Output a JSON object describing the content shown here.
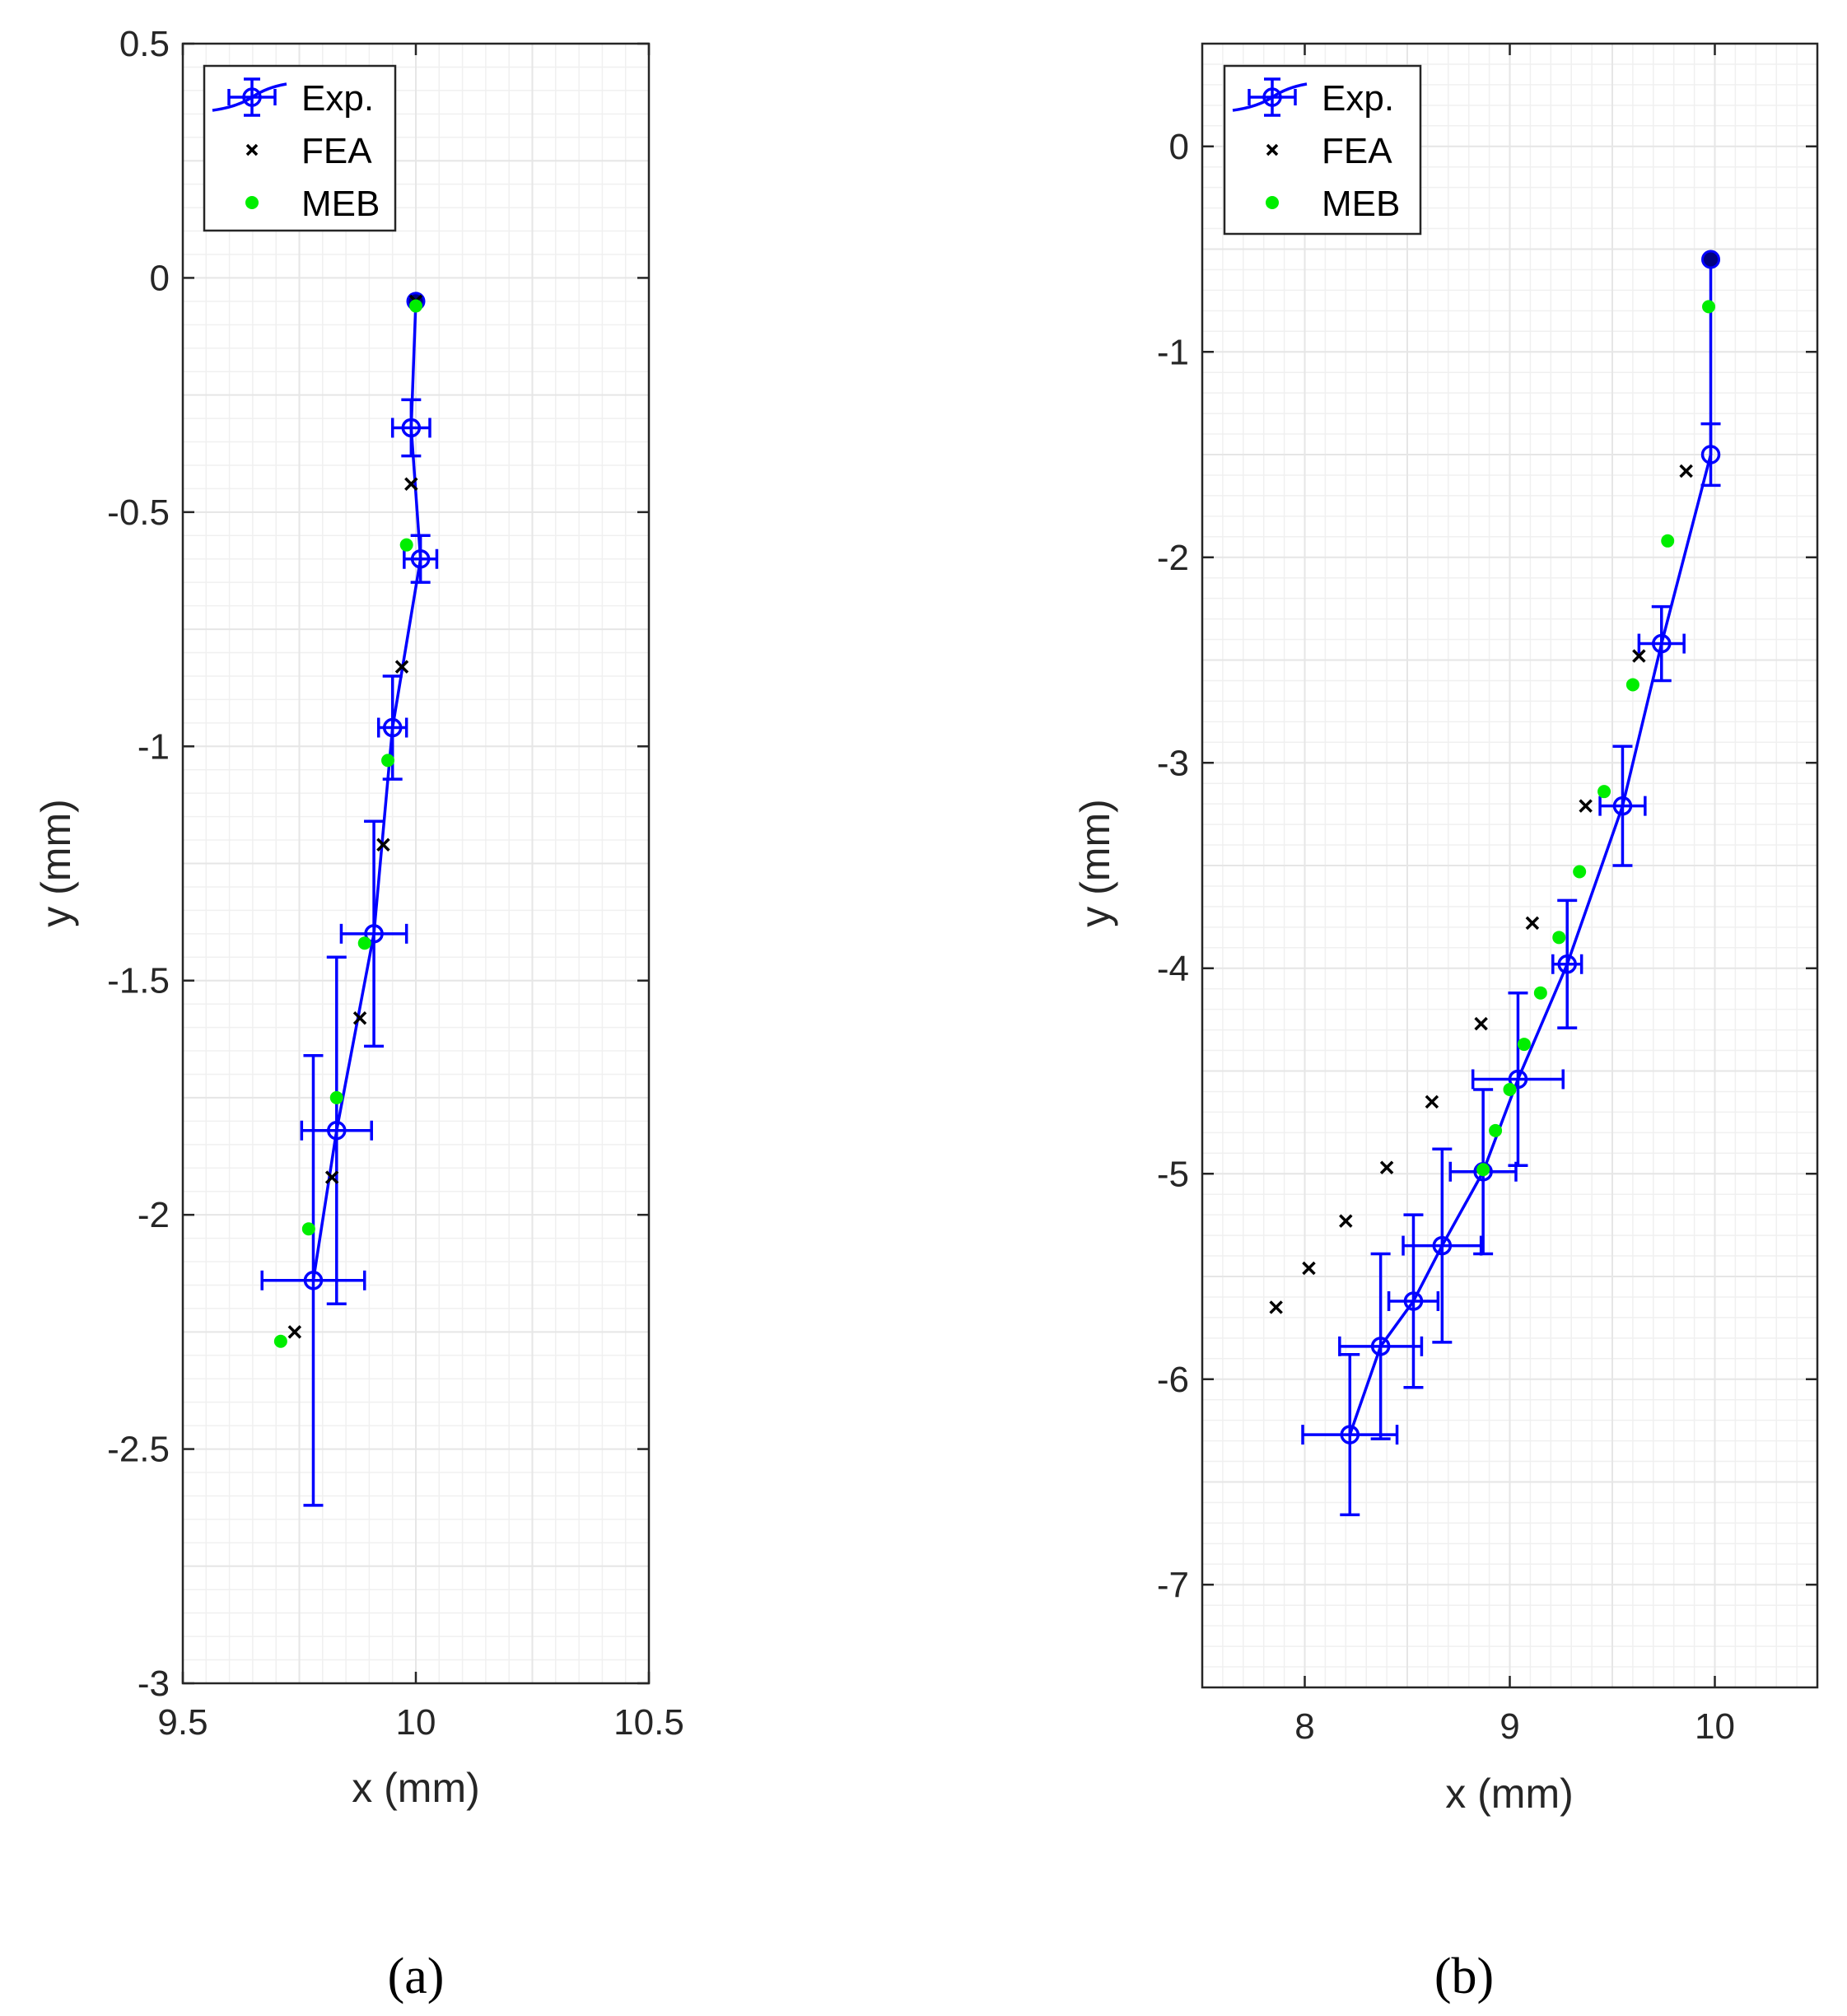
{
  "colors": {
    "experimental": "#0000ff",
    "fea": "#000000",
    "meb": "#00ee00",
    "grid": "#e6e6e6",
    "axis": "#262626"
  },
  "legend": {
    "exp_label": "Exp.",
    "fea_label": "FEA",
    "meb_label": "MEB"
  },
  "chart_data": [
    {
      "type": "scatter",
      "panel_label": "(a)",
      "xlabel": "x (mm)",
      "ylabel": "y (mm)",
      "xlim": [
        9.5,
        10.5
      ],
      "ylim": [
        -3,
        0.5
      ],
      "xticks": [
        9.5,
        10,
        10.5
      ],
      "xtick_labels": [
        "9.5",
        "10",
        "10.5"
      ],
      "yticks": [
        -3,
        -2.5,
        -2,
        -1.5,
        -1,
        -0.5,
        0,
        0.5
      ],
      "ytick_labels": [
        "-3",
        "-2.5",
        "-2",
        "-1.5",
        "-1",
        "-0.5",
        "0",
        "0.5"
      ],
      "grid": true,
      "legend_position": "top-left",
      "series": [
        {
          "name": "Exp.",
          "kind": "line-errorbar",
          "points": [
            {
              "x": 10.0,
              "y": -0.05,
              "xerr": 0,
              "yerr": 0
            },
            {
              "x": 9.99,
              "y": -0.32,
              "xerr": 0.04,
              "yerr": 0.06
            },
            {
              "x": 10.01,
              "y": -0.6,
              "xerr": 0.035,
              "yerr": 0.05
            },
            {
              "x": 9.95,
              "y": -0.96,
              "xerr": 0.03,
              "yerr": 0.11
            },
            {
              "x": 9.91,
              "y": -1.4,
              "xerr": 0.07,
              "yerr": 0.24
            },
            {
              "x": 9.83,
              "y": -1.82,
              "xerr": 0.075,
              "yerr": 0.37
            },
            {
              "x": 9.78,
              "y": -2.14,
              "xerr": 0.11,
              "yerr": 0.48
            }
          ]
        },
        {
          "name": "FEA",
          "kind": "marker-x",
          "points": [
            {
              "x": 10.0,
              "y": -0.05
            },
            {
              "x": 9.99,
              "y": -0.44
            },
            {
              "x": 9.97,
              "y": -0.83
            },
            {
              "x": 9.93,
              "y": -1.21
            },
            {
              "x": 9.88,
              "y": -1.58
            },
            {
              "x": 9.82,
              "y": -1.92
            },
            {
              "x": 9.74,
              "y": -2.25
            }
          ]
        },
        {
          "name": "MEB",
          "kind": "marker-dot",
          "points": [
            {
              "x": 10.0,
              "y": -0.06
            },
            {
              "x": 9.98,
              "y": -0.57
            },
            {
              "x": 9.94,
              "y": -1.03
            },
            {
              "x": 9.89,
              "y": -1.42
            },
            {
              "x": 9.83,
              "y": -1.75
            },
            {
              "x": 9.77,
              "y": -2.03
            },
            {
              "x": 9.71,
              "y": -2.27
            }
          ]
        }
      ]
    },
    {
      "type": "scatter",
      "panel_label": "(b)",
      "xlabel": "x (mm)",
      "ylabel": "y (mm)",
      "xlim": [
        7.5,
        10.5
      ],
      "ylim": [
        -7.5,
        0.5
      ],
      "xticks": [
        8,
        9,
        10
      ],
      "xtick_labels": [
        "8",
        "9",
        "10"
      ],
      "yticks": [
        -7,
        -6,
        -5,
        -4,
        -3,
        -2,
        -1,
        0
      ],
      "ytick_labels": [
        "-7",
        "-6",
        "-5",
        "-4",
        "-3",
        "-2",
        "-1",
        "0"
      ],
      "grid": true,
      "legend_position": "top-left",
      "series": [
        {
          "name": "Exp.",
          "kind": "line-errorbar",
          "points": [
            {
              "x": 9.98,
              "y": -0.55,
              "xerr": 0,
              "yerr": 0
            },
            {
              "x": 9.98,
              "y": -1.5,
              "xerr": 0,
              "yerr": 0.15
            },
            {
              "x": 9.74,
              "y": -2.42,
              "xerr": 0.11,
              "yerr": 0.18
            },
            {
              "x": 9.55,
              "y": -3.21,
              "xerr": 0.11,
              "yerr": 0.29
            },
            {
              "x": 9.28,
              "y": -3.98,
              "xerr": 0.07,
              "yerr": 0.31
            },
            {
              "x": 9.04,
              "y": -4.54,
              "xerr": 0.22,
              "yerr": 0.42
            },
            {
              "x": 8.87,
              "y": -4.99,
              "xerr": 0.16,
              "yerr": 0.4
            },
            {
              "x": 8.67,
              "y": -5.35,
              "xerr": 0.19,
              "yerr": 0.47
            },
            {
              "x": 8.53,
              "y": -5.62,
              "xerr": 0.12,
              "yerr": 0.42
            },
            {
              "x": 8.37,
              "y": -5.84,
              "xerr": 0.2,
              "yerr": 0.45
            },
            {
              "x": 8.22,
              "y": -6.27,
              "xerr": 0.23,
              "yerr": 0.39
            }
          ]
        },
        {
          "name": "FEA",
          "kind": "marker-x",
          "points": [
            {
              "x": 9.86,
              "y": -1.58
            },
            {
              "x": 9.63,
              "y": -2.48
            },
            {
              "x": 9.37,
              "y": -3.21
            },
            {
              "x": 9.11,
              "y": -3.78
            },
            {
              "x": 8.86,
              "y": -4.27
            },
            {
              "x": 8.62,
              "y": -4.65
            },
            {
              "x": 8.4,
              "y": -4.97
            },
            {
              "x": 8.2,
              "y": -5.23
            },
            {
              "x": 8.02,
              "y": -5.46
            },
            {
              "x": 7.86,
              "y": -5.65
            }
          ]
        },
        {
          "name": "MEB",
          "kind": "marker-dot",
          "points": [
            {
              "x": 9.97,
              "y": -0.78
            },
            {
              "x": 9.77,
              "y": -1.92
            },
            {
              "x": 9.6,
              "y": -2.62
            },
            {
              "x": 9.46,
              "y": -3.14
            },
            {
              "x": 9.34,
              "y": -3.53
            },
            {
              "x": 9.24,
              "y": -3.85
            },
            {
              "x": 9.15,
              "y": -4.12
            },
            {
              "x": 9.07,
              "y": -4.37
            },
            {
              "x": 9.0,
              "y": -4.59
            },
            {
              "x": 8.93,
              "y": -4.79
            },
            {
              "x": 8.87,
              "y": -4.98
            }
          ]
        }
      ]
    }
  ]
}
